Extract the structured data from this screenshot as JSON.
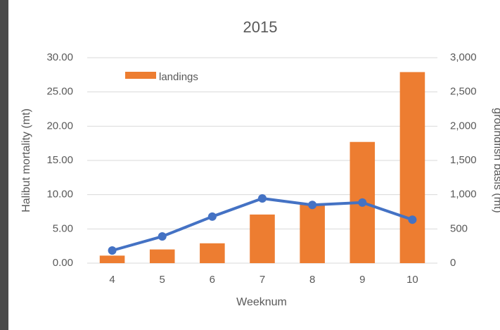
{
  "chart_data": {
    "type": "bar-line",
    "title": "2015",
    "xlabel": "Weeknum",
    "ylabel": "Halibut mortality (mt)",
    "y2label": "groundfish basis (mt)",
    "categories": [
      "4",
      "5",
      "6",
      "7",
      "8",
      "9",
      "10"
    ],
    "series": [
      {
        "name": "landings",
        "type": "bar",
        "axis": "y2",
        "color": "#ed7d31",
        "values": [
          110,
          200,
          290,
          710,
          860,
          1770,
          2790
        ]
      },
      {
        "type": "line",
        "color": "#4472c4",
        "values": [
          1.85,
          3.9,
          6.8,
          9.45,
          8.5,
          8.85,
          6.35
        ]
      }
    ],
    "ylim": [
      0,
      30
    ],
    "yticks": [
      {
        "value": 0,
        "label": "0.00"
      },
      {
        "value": 5,
        "label": "5.00"
      },
      {
        "value": 10,
        "label": "10.00"
      },
      {
        "value": 15,
        "label": "15.00"
      },
      {
        "value": 20,
        "label": "20.00"
      },
      {
        "value": 25,
        "label": "25.00"
      },
      {
        "value": 30,
        "label": "30.00"
      }
    ],
    "y2lim": [
      0,
      3000
    ],
    "y2ticks": [
      0,
      500,
      {
        "value": 1000,
        "label": "1,000"
      },
      {
        "value": 1500,
        "label": "1,500"
      },
      {
        "value": 2000,
        "label": "2,000"
      },
      {
        "value": 2500,
        "label": "2,500"
      },
      {
        "value": 3000,
        "label": "3,000"
      }
    ],
    "grid": true,
    "legend": "top-left"
  }
}
